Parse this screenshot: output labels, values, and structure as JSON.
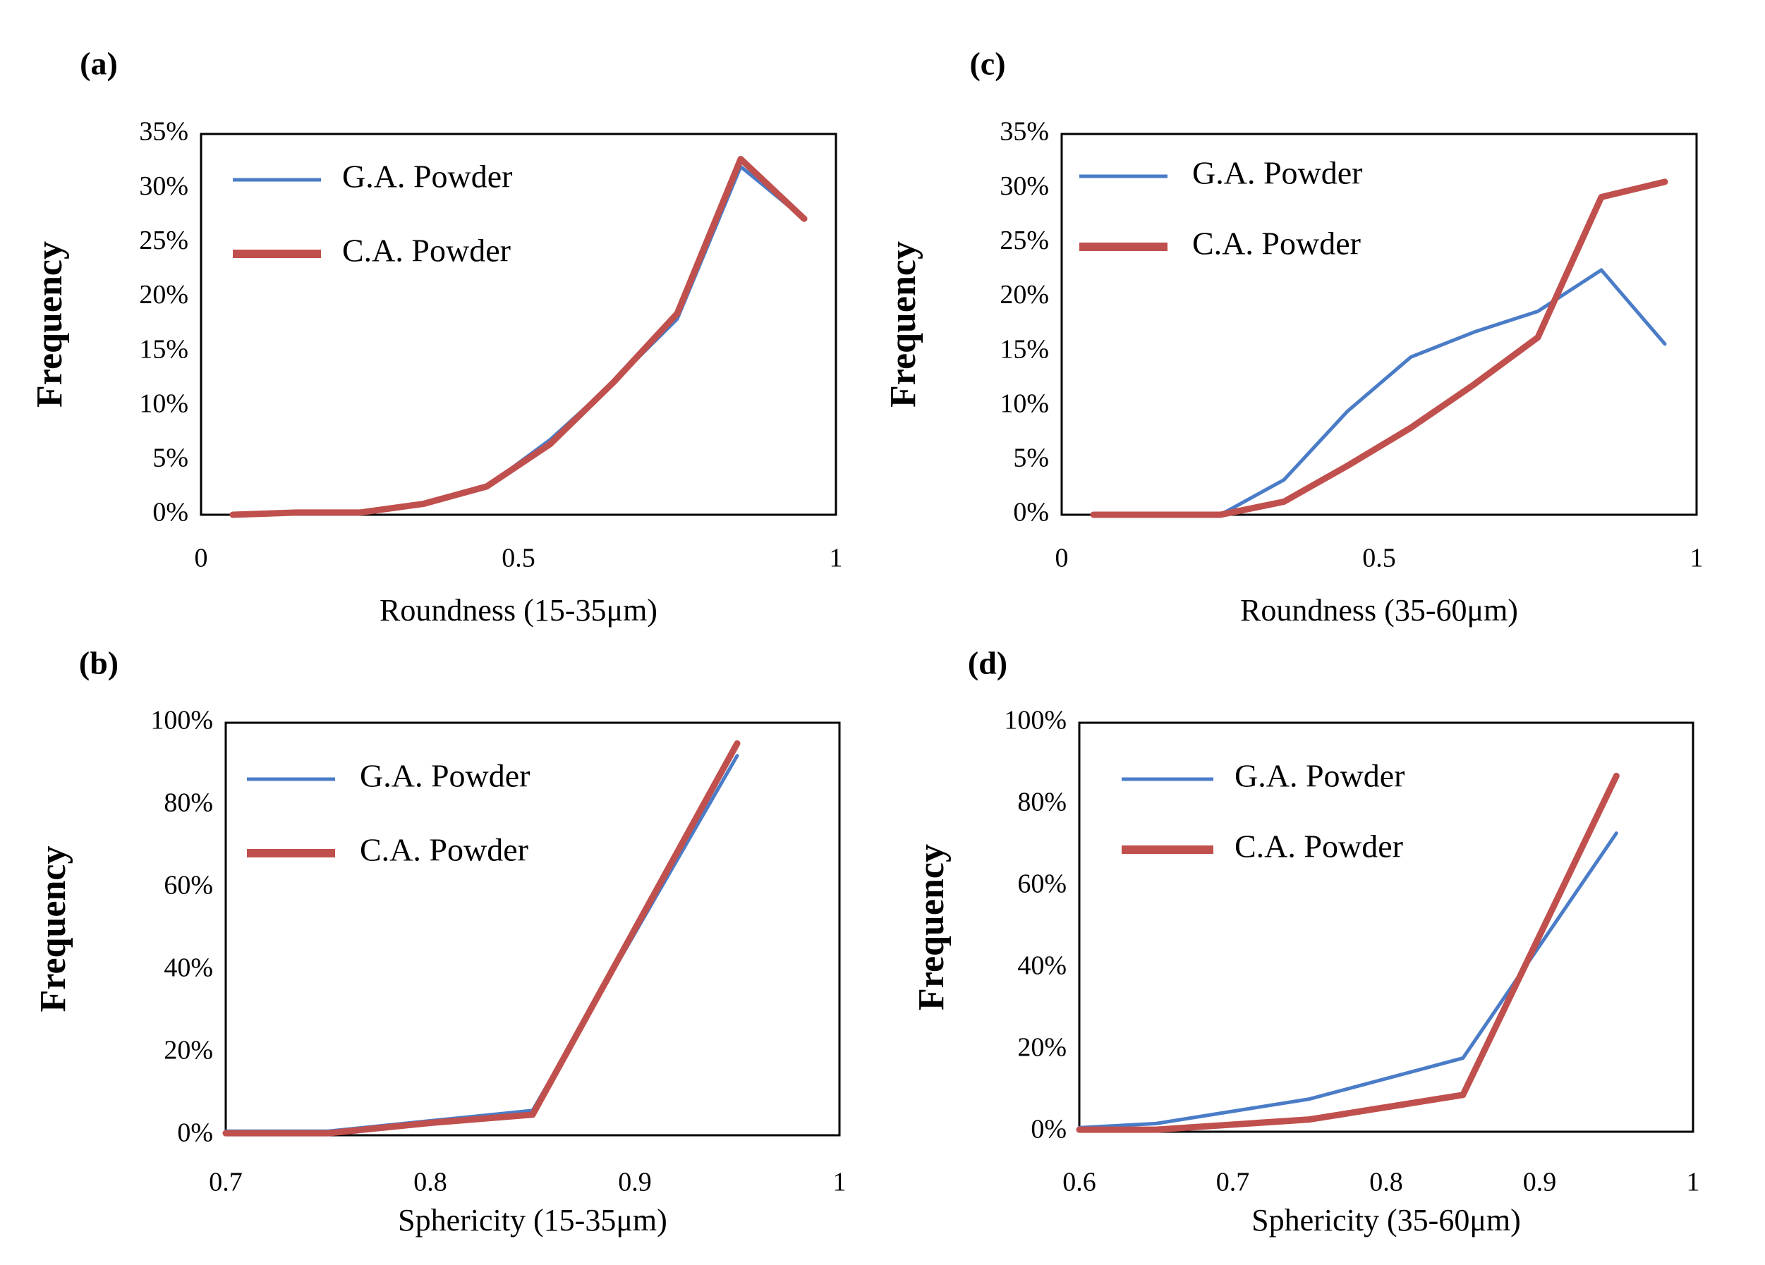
{
  "colors": {
    "ga": "#4a7cc7",
    "ca": "#c0504d"
  },
  "chart_data": [
    {
      "id": "a",
      "panel_label": "(a)",
      "type": "line",
      "xlabel": "Roundness (15-35μm)",
      "ylabel": "Frequency",
      "xlim": [
        0,
        1
      ],
      "ylim": [
        0,
        0.35
      ],
      "xticks": [
        0,
        0.5,
        1
      ],
      "xtick_labels": [
        "0",
        "0.5",
        "1"
      ],
      "yticks": [
        0,
        0.05,
        0.1,
        0.15,
        0.2,
        0.25,
        0.3,
        0.35
      ],
      "ytick_labels": [
        "0%",
        "5%",
        "10%",
        "15%",
        "20%",
        "25%",
        "30%",
        "35%"
      ],
      "x": [
        0.05,
        0.15,
        0.25,
        0.35,
        0.45,
        0.55,
        0.65,
        0.75,
        0.85,
        0.95
      ],
      "series": [
        {
          "name": "G.A. Powder",
          "values": [
            0,
            0.002,
            0.002,
            0.01,
            0.026,
            0.069,
            0.122,
            0.18,
            0.32,
            0.272
          ]
        },
        {
          "name": "C.A. Powder",
          "values": [
            0,
            0.002,
            0.002,
            0.01,
            0.026,
            0.065,
            0.122,
            0.185,
            0.327,
            0.272
          ]
        }
      ],
      "legend": [
        "G.A. Powder",
        "C.A. Powder"
      ],
      "legend_position": "top-left"
    },
    {
      "id": "c",
      "panel_label": "(c)",
      "type": "line",
      "xlabel": "Roundness (35-60μm)",
      "ylabel": "Frequency",
      "xlim": [
        0,
        1
      ],
      "ylim": [
        0,
        0.35
      ],
      "xticks": [
        0,
        0.5,
        1
      ],
      "xtick_labels": [
        "0",
        "0.5",
        "1"
      ],
      "yticks": [
        0,
        0.05,
        0.1,
        0.15,
        0.2,
        0.25,
        0.3,
        0.35
      ],
      "ytick_labels": [
        "0%",
        "5%",
        "10%",
        "15%",
        "20%",
        "25%",
        "30%",
        "35%"
      ],
      "x": [
        0.05,
        0.15,
        0.25,
        0.35,
        0.45,
        0.55,
        0.65,
        0.75,
        0.85,
        0.95
      ],
      "series": [
        {
          "name": "G.A. Powder",
          "values": [
            0,
            0,
            0,
            0.032,
            0.095,
            0.145,
            0.168,
            0.187,
            0.225,
            0.157
          ]
        },
        {
          "name": "C.A. Powder",
          "values": [
            0,
            0,
            0,
            0.012,
            0.045,
            0.08,
            0.12,
            0.163,
            0.292,
            0.306
          ]
        }
      ],
      "legend": [
        "G.A. Powder",
        "C.A. Powder"
      ],
      "legend_position": "top-left"
    },
    {
      "id": "b",
      "panel_label": "(b)",
      "type": "line",
      "xlabel": "Sphericity (15-35μm)",
      "ylabel": "Frequency",
      "xlim": [
        0.7,
        1
      ],
      "ylim": [
        0,
        1
      ],
      "xticks": [
        0.7,
        0.8,
        0.9,
        1
      ],
      "xtick_labels": [
        "0.7",
        "0.8",
        "0.9",
        "1"
      ],
      "yticks": [
        0,
        0.2,
        0.4,
        0.6,
        0.8,
        1.0
      ],
      "ytick_labels": [
        "0%",
        "20%",
        "40%",
        "60%",
        "80%",
        "100%"
      ],
      "x": [
        0.7,
        0.75,
        0.8,
        0.85,
        0.95
      ],
      "series": [
        {
          "name": "G.A. Powder",
          "values": [
            0.01,
            0.01,
            0.035,
            0.06,
            0.92
          ]
        },
        {
          "name": "C.A. Powder",
          "values": [
            0.005,
            0.005,
            0.03,
            0.05,
            0.95
          ]
        }
      ],
      "legend": [
        "G.A. Powder",
        "C.A. Powder"
      ],
      "legend_position": "top-left"
    },
    {
      "id": "d",
      "panel_label": "(d)",
      "type": "line",
      "xlabel": "Sphericity (35-60μm)",
      "ylabel": "Frequency",
      "xlim": [
        0.6,
        1
      ],
      "ylim": [
        0,
        1
      ],
      "xticks": [
        0.6,
        0.7,
        0.8,
        0.9,
        1
      ],
      "xtick_labels": [
        "0.6",
        "0.7",
        "0.8",
        "0.9",
        "1"
      ],
      "yticks": [
        0,
        0.2,
        0.4,
        0.6,
        0.8,
        1.0
      ],
      "ytick_labels": [
        "0%",
        "20%",
        "40%",
        "60%",
        "80%",
        "100%"
      ],
      "x": [
        0.6,
        0.65,
        0.75,
        0.85,
        0.95
      ],
      "series": [
        {
          "name": "G.A. Powder",
          "values": [
            0.01,
            0.02,
            0.08,
            0.18,
            0.73
          ]
        },
        {
          "name": "C.A. Powder",
          "values": [
            0.005,
            0.005,
            0.03,
            0.09,
            0.87
          ]
        }
      ],
      "legend": [
        "G.A. Powder",
        "C.A. Powder"
      ],
      "legend_position": "top-left"
    }
  ]
}
